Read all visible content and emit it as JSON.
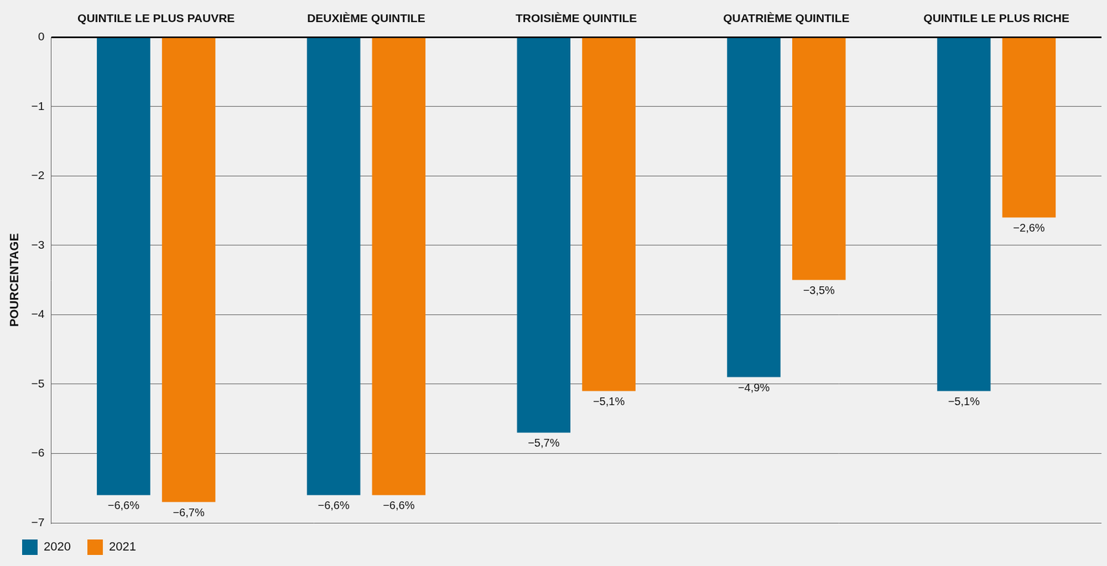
{
  "chart_data": {
    "type": "bar",
    "y_label": "POURCENTAGE",
    "categories": [
      "QUINTILE LE PLUS PAUVRE",
      "DEUXIÈME QUINTILE",
      "TROISIÈME QUINTILE",
      "QUATRIÈME QUINTILE",
      "QUINTILE LE PLUS RICHE"
    ],
    "series": [
      {
        "name": "2020",
        "color": "#006892",
        "values": [
          -6.6,
          -6.6,
          -5.7,
          -4.9,
          -5.1
        ],
        "value_labels": [
          "−6,6%",
          "−6,6%",
          "−5,7%",
          "−4,9%",
          "−5,1%"
        ]
      },
      {
        "name": "2021",
        "color": "#f07f09",
        "values": [
          -6.7,
          -6.6,
          -5.1,
          -3.5,
          -2.6
        ],
        "value_labels": [
          "−6,7%",
          "−6,6%",
          "−5,1%",
          "−3,5%",
          "−2,6%"
        ]
      }
    ],
    "ylim": [
      -7,
      0
    ],
    "yticks": [
      0,
      {
        "value": -1,
        "label": "−1"
      },
      {
        "value": -2,
        "label": "−2"
      },
      {
        "value": -3,
        "label": "−3"
      },
      {
        "value": -4,
        "label": "−4"
      },
      {
        "value": -5,
        "label": "−5"
      },
      {
        "value": -6,
        "label": "−6"
      },
      {
        "value": -7,
        "label": "−7"
      }
    ],
    "grid": true,
    "legend": "lower left",
    "data_labels": true
  }
}
